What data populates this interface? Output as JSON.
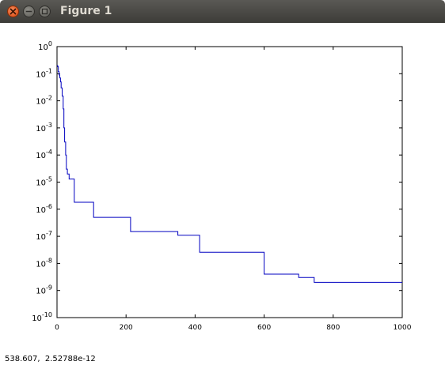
{
  "window": {
    "title": "Figure 1",
    "buttons": {
      "close": "close-icon",
      "minimize": "minimize-icon",
      "maximize": "maximize-icon"
    }
  },
  "status": {
    "coords": "538.607,  2.52788e-12"
  },
  "colors": {
    "line": "#0000c0",
    "axes": "#000000",
    "close_button": "#e0561b"
  },
  "chart_data": {
    "type": "line",
    "title": "",
    "xlabel": "",
    "ylabel": "",
    "xlim": [
      0,
      1000
    ],
    "ylim": [
      1e-10,
      1
    ],
    "yscale": "log",
    "grid": false,
    "xticks": [
      0,
      200,
      400,
      600,
      800,
      1000
    ],
    "xtick_labels": [
      "0",
      "200",
      "400",
      "600",
      "800",
      "1000"
    ],
    "yticks_exp": [
      0,
      -1,
      -2,
      -3,
      -4,
      -5,
      -6,
      -7,
      -8,
      -9,
      -10
    ],
    "ytick_base": "10",
    "series": [
      {
        "x": [
          0,
          2,
          4,
          6,
          8,
          10,
          12,
          15,
          18,
          20,
          22,
          25,
          27,
          30,
          35,
          40,
          45,
          50,
          60,
          80,
          100,
          106,
          150,
          210,
          213,
          300,
          348,
          350,
          410,
          413,
          500,
          596,
          600,
          680,
          700,
          745,
          800,
          900,
          1000
        ],
        "y": [
          0.2,
          0.18,
          0.12,
          0.09,
          0.07,
          0.05,
          0.03,
          0.015,
          0.005,
          0.001,
          0.0003,
          0.0001,
          3e-05,
          2e-05,
          1.3e-05,
          1.3e-05,
          1.3e-05,
          1.8e-06,
          1.8e-06,
          1.8e-06,
          1.8e-06,
          5e-07,
          5e-07,
          5e-07,
          1.5e-07,
          1.5e-07,
          1.5e-07,
          1.1e-07,
          1.1e-07,
          2.6e-08,
          2.6e-08,
          2.6e-08,
          4e-09,
          4e-09,
          3e-09,
          2e-09,
          2e-09,
          2e-09,
          2e-09
        ]
      }
    ]
  }
}
